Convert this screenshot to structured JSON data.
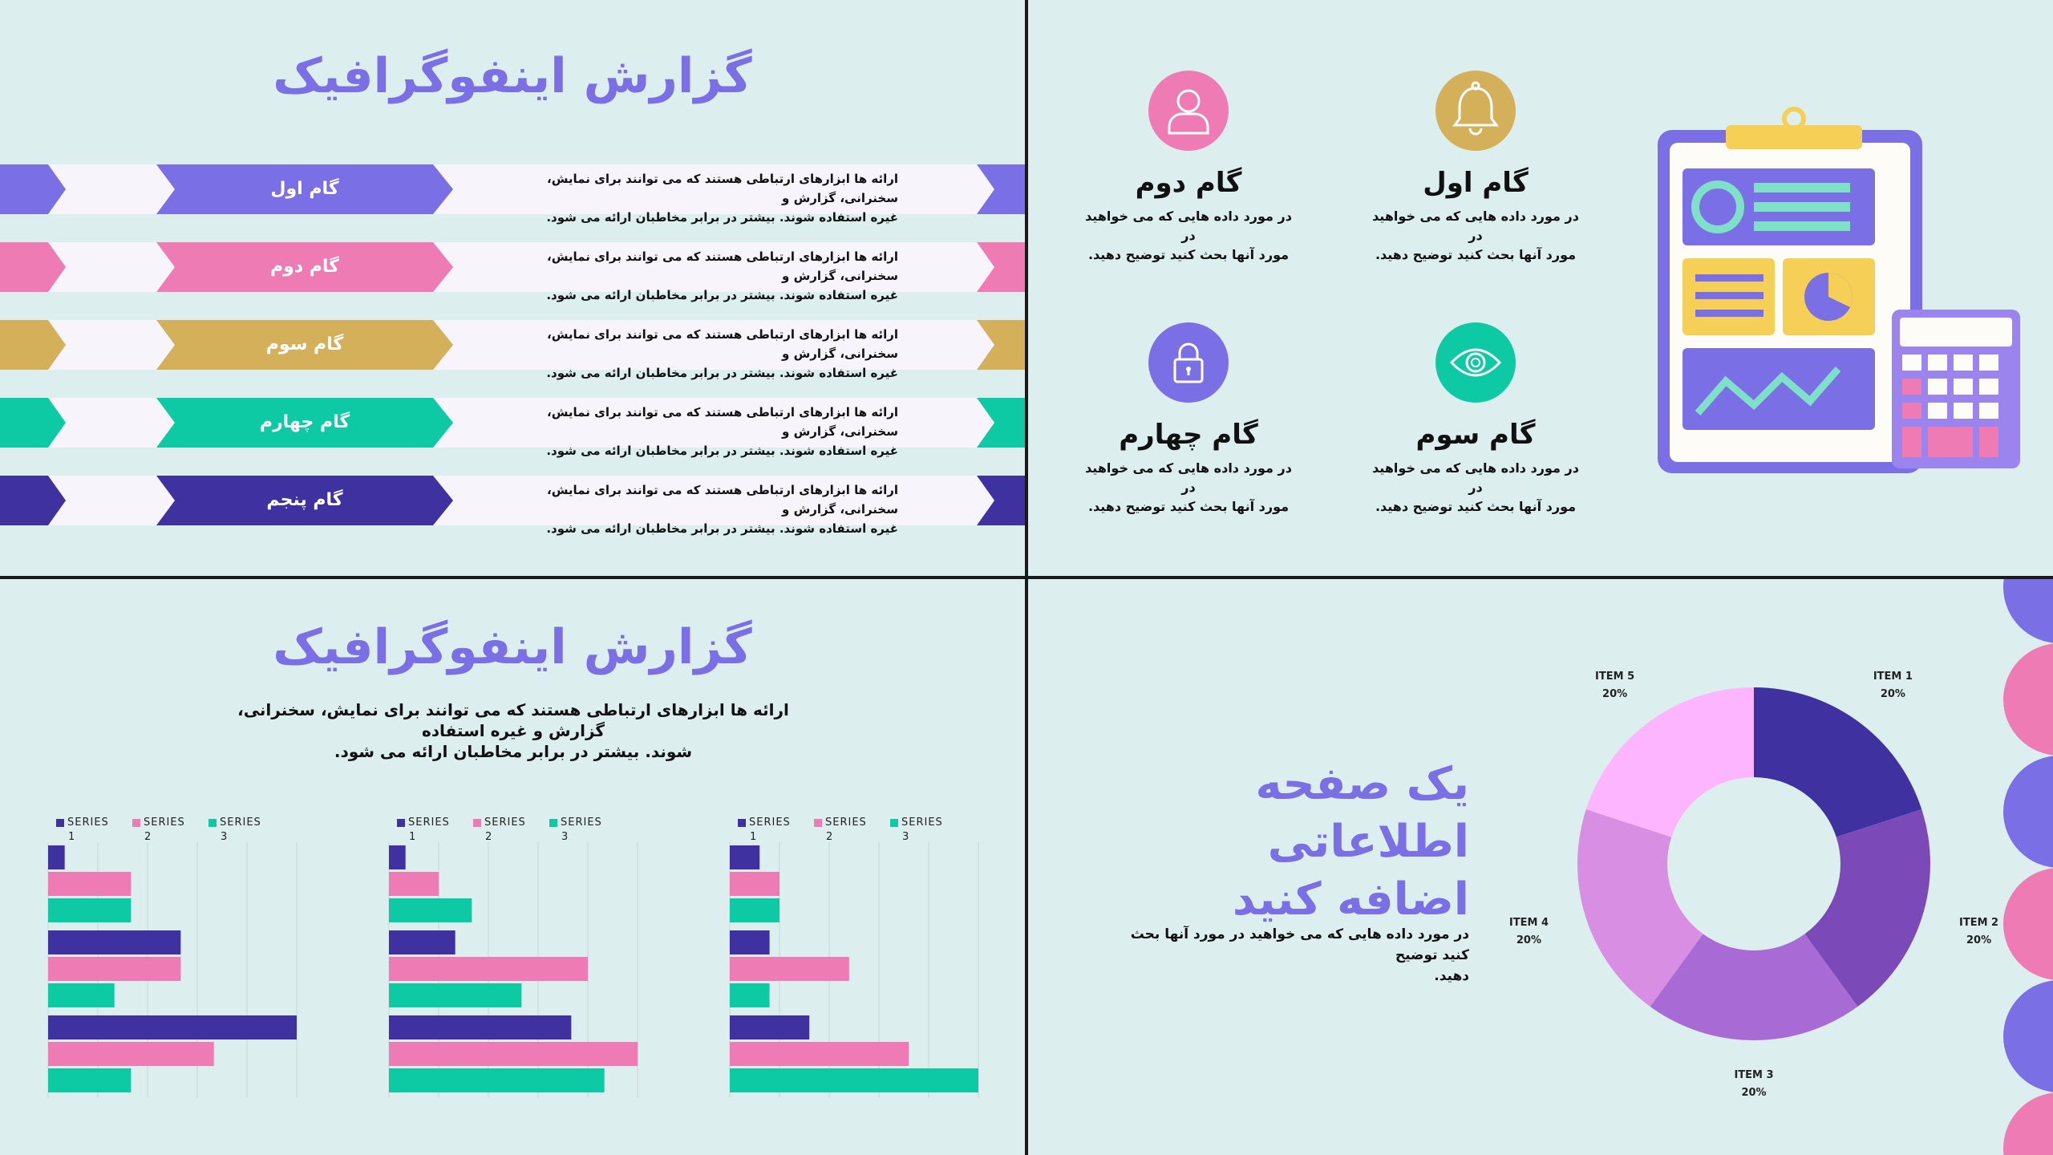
{
  "slide1": {
    "title": "گزارش اینفوگرافیک",
    "steps": [
      {
        "label": "گام اول",
        "color": "#7b6fe6",
        "text1": "ارائه ها ابزارهای ارتباطی هستند که می توانند برای نمایش، سخنرانی، گزارش و",
        "text2": "غیره استفاده شوند. بیشتر در برابر مخاطبان ارائه می شود."
      },
      {
        "label": "گام دوم",
        "color": "#ee7bb3",
        "text1": "ارائه ها ابزارهای ارتباطی هستند که می توانند برای نمایش، سخنرانی، گزارش و",
        "text2": "غیره استفاده شوند. بیشتر در برابر مخاطبان ارائه می شود."
      },
      {
        "label": "گام سوم",
        "color": "#d4b05a",
        "text1": "ارائه ها ابزارهای ارتباطی هستند که می توانند برای نمایش، سخنرانی، گزارش و",
        "text2": "غیره استفاده شوند. بیشتر در برابر مخاطبان ارائه می شود."
      },
      {
        "label": "گام چهارم",
        "color": "#0dcaa5",
        "text1": "ارائه ها ابزارهای ارتباطی هستند که می توانند برای نمایش، سخنرانی، گزارش و",
        "text2": "غیره استفاده شوند. بیشتر در برابر مخاطبان ارائه می شود."
      },
      {
        "label": "گام پنجم",
        "color": "#3f32a0",
        "text1": "ارائه ها ابزارهای ارتباطی هستند که می توانند برای نمایش، سخنرانی، گزارش و",
        "text2": "غیره استفاده شوند. بیشتر در برابر مخاطبان ارائه می شود."
      }
    ]
  },
  "slide2": {
    "features": [
      {
        "title": "گام اول",
        "text1": "در مورد داده هایی که می خواهید در",
        "text2": "مورد آنها بحث کنید توضیح دهید.",
        "icon": "bell-icon",
        "color": "#d4b05a"
      },
      {
        "title": "گام دوم",
        "text1": "در مورد داده هایی که می خواهید در",
        "text2": "مورد آنها بحث کنید توضیح دهید.",
        "icon": "user-icon",
        "color": "#ee7bb3"
      },
      {
        "title": "گام سوم",
        "text1": "در مورد داده هایی که می خواهید در",
        "text2": "مورد آنها بحث کنید توضیح دهید.",
        "icon": "eye-icon",
        "color": "#0dcaa5"
      },
      {
        "title": "گام چهارم",
        "text1": "در مورد داده هایی که می خواهید در",
        "text2": "مورد آنها بحث کنید توضیح دهید.",
        "icon": "lock-icon",
        "color": "#7b6fe6"
      }
    ],
    "illustration": "clipboard-calculator-illustration"
  },
  "slide3": {
    "title": "گزارش اینفوگرافیک",
    "intro1": "ارائه ها ابزارهای ارتباطی هستند که می توانند برای نمایش، سخنرانی، گزارش و غیره استفاده",
    "intro2": "شوند. بیشتر در برابر مخاطبان ارائه می شود."
  },
  "chart_data": [
    {
      "type": "bar",
      "orientation": "horizontal",
      "series": [
        {
          "name": "SERIES 1",
          "color": "#3f32a0",
          "values": [
            0.5,
            4,
            7.5
          ]
        },
        {
          "name": "SERIES 2",
          "color": "#ee7bb3",
          "values": [
            2.5,
            4,
            5
          ]
        },
        {
          "name": "SERIES 3",
          "color": "#0dcaa5",
          "values": [
            2.5,
            2,
            2.5
          ]
        }
      ],
      "xlim": [
        0,
        7.5
      ],
      "grid": true,
      "legend": "top-left"
    },
    {
      "type": "bar",
      "orientation": "horizontal",
      "series": [
        {
          "name": "SERIES 1",
          "color": "#3f32a0",
          "values": [
            0.5,
            2,
            5.5
          ]
        },
        {
          "name": "SERIES 2",
          "color": "#ee7bb3",
          "values": [
            1.5,
            6,
            7.5
          ]
        },
        {
          "name": "SERIES 3",
          "color": "#0dcaa5",
          "values": [
            2.5,
            4,
            6.5
          ]
        }
      ],
      "xlim": [
        0,
        7.5
      ],
      "grid": true,
      "legend": "top-left"
    },
    {
      "type": "bar",
      "orientation": "horizontal",
      "series": [
        {
          "name": "SERIES 1",
          "color": "#3f32a0",
          "values": [
            1.5,
            2,
            4
          ]
        },
        {
          "name": "SERIES 2",
          "color": "#ee7bb3",
          "values": [
            2.5,
            6,
            9
          ]
        },
        {
          "name": "SERIES 3",
          "color": "#0dcaa5",
          "values": [
            2.5,
            2,
            12.5
          ]
        }
      ],
      "xlim": [
        0,
        12.5
      ],
      "grid": true,
      "legend": "top-left"
    },
    {
      "type": "pie",
      "donut": true,
      "categories": [
        "ITEM 1",
        "ITEM 2",
        "ITEM 3",
        "ITEM 4",
        "ITEM 5"
      ],
      "values": [
        20,
        20,
        20,
        20,
        20
      ],
      "value_labels": [
        "20%",
        "20%",
        "20%",
        "20%",
        "20%"
      ],
      "colors": [
        "#3f32a0",
        "#7b4ab8",
        "#a86bd6",
        "#d88ee2",
        "#fdb5ff"
      ]
    }
  ],
  "slide4": {
    "title1": "یک صفحه اطلاعاتی",
    "title2": "اضافه کنید",
    "text1": "در مورد داده هایی که می خواهید در مورد آنها بحث کنید توضیح",
    "text2": "دهید.",
    "edge_colors": [
      "#7b6fe6",
      "#ee7bb3",
      "#7b6fe6",
      "#ee7bb3",
      "#7b6fe6",
      "#ee7bb3"
    ]
  }
}
